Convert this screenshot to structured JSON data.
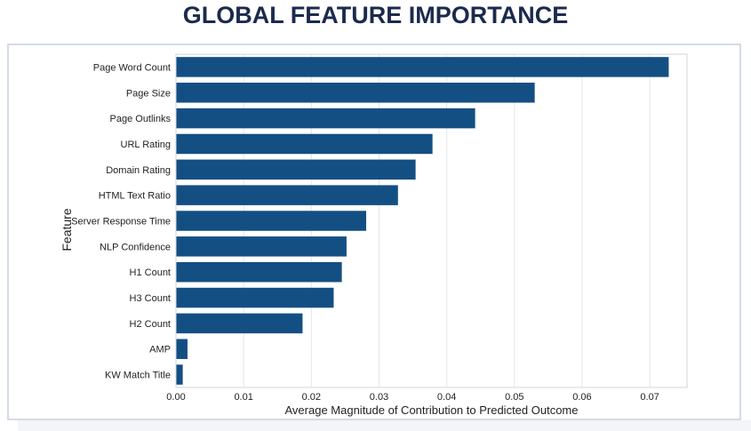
{
  "title": "GLOBAL FEATURE IMPORTANCE",
  "chart_data": {
    "type": "bar",
    "orientation": "horizontal",
    "xlabel": "Average Magnitude of Contribution to Predicted Outcome",
    "ylabel": "Feature",
    "xlim": [
      0,
      0.0755
    ],
    "xticks": [
      0.0,
      0.01,
      0.02,
      0.03,
      0.04,
      0.05,
      0.06,
      0.07
    ],
    "xtick_labels": [
      "0.00",
      "0.01",
      "0.02",
      "0.03",
      "0.04",
      "0.05",
      "0.06",
      "0.07"
    ],
    "grid": "vertical",
    "bar_color": "#144f84",
    "categories": [
      "Page Word Count",
      "Page Size",
      "Page Outlinks",
      "URL Rating",
      "Domain Rating",
      "HTML Text Ratio",
      "Server Response Time",
      "NLP Confidence",
      "H1 Count",
      "H3 Count",
      "H2 Count",
      "AMP",
      "KW Match Title"
    ],
    "values": [
      0.0728,
      0.053,
      0.0442,
      0.0379,
      0.0354,
      0.0328,
      0.0281,
      0.0252,
      0.0245,
      0.0233,
      0.0187,
      0.0017,
      0.001
    ]
  }
}
